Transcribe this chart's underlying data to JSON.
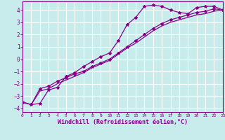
{
  "bg_color": "#c8ecec",
  "grid_color": "#ffffff",
  "line_color": "#880088",
  "xlabel": "Windchill (Refroidissement éolien,°C)",
  "xlim": [
    0,
    23
  ],
  "ylim": [
    -4.3,
    4.7
  ],
  "yticks": [
    -4,
    -3,
    -2,
    -1,
    0,
    1,
    2,
    3,
    4
  ],
  "xticks": [
    0,
    1,
    2,
    3,
    4,
    5,
    6,
    7,
    8,
    9,
    10,
    11,
    12,
    13,
    14,
    15,
    16,
    17,
    18,
    19,
    20,
    21,
    22,
    23
  ],
  "series1_x": [
    0,
    1,
    2,
    3,
    4,
    5,
    6,
    7,
    8,
    9,
    10,
    11,
    12,
    13,
    14,
    15,
    16,
    17,
    18,
    19,
    20,
    21,
    22,
    23
  ],
  "series1_y": [
    -3.5,
    -3.7,
    -3.6,
    -2.5,
    -2.3,
    -1.4,
    -1.1,
    -0.6,
    -0.2,
    0.2,
    0.5,
    1.5,
    2.8,
    3.4,
    4.3,
    4.4,
    4.3,
    4.0,
    3.8,
    3.7,
    4.2,
    4.3,
    4.3,
    4.0
  ],
  "series2_x": [
    0,
    1,
    2,
    3,
    4,
    5,
    6,
    7,
    8,
    9,
    10,
    11,
    12,
    13,
    14,
    15,
    16,
    17,
    18,
    19,
    20,
    21,
    22,
    23
  ],
  "series2_y": [
    -3.5,
    -3.7,
    -2.4,
    -2.2,
    -1.8,
    -1.5,
    -1.2,
    -1.0,
    -0.6,
    -0.3,
    0.0,
    0.5,
    1.0,
    1.5,
    2.0,
    2.5,
    2.9,
    3.2,
    3.4,
    3.6,
    3.8,
    3.9,
    4.1,
    4.0
  ],
  "series3_x": [
    0,
    1,
    2,
    3,
    4,
    5,
    6,
    7,
    8,
    9,
    10,
    11,
    12,
    13,
    14,
    15,
    16,
    17,
    18,
    19,
    20,
    21,
    22,
    23
  ],
  "series3_y": [
    -3.5,
    -3.7,
    -2.6,
    -2.4,
    -2.0,
    -1.7,
    -1.4,
    -1.1,
    -0.7,
    -0.4,
    -0.1,
    0.4,
    0.9,
    1.3,
    1.8,
    2.3,
    2.7,
    3.0,
    3.2,
    3.4,
    3.6,
    3.7,
    3.9,
    4.0
  ]
}
